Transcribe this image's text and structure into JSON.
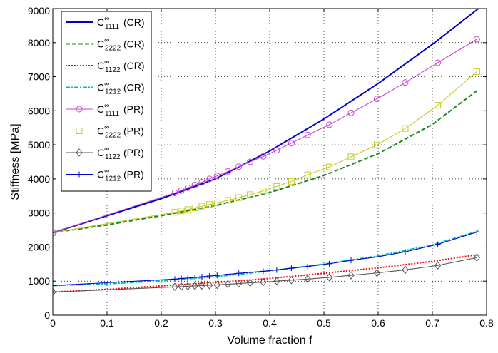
{
  "chart_data": {
    "type": "line",
    "title": "",
    "xlabel": "Volume fraction f",
    "ylabel": "Stiffness [MPa]",
    "xlim": [
      0,
      0.8
    ],
    "ylim": [
      0,
      9000
    ],
    "xticks": [
      "0",
      "0.1",
      "0.2",
      "0.3",
      "0.4",
      "0.5",
      "0.6",
      "0.7",
      "0.8"
    ],
    "yticks": [
      "0",
      "1000",
      "2000",
      "3000",
      "4000",
      "5000",
      "6000",
      "7000",
      "8000",
      "9000"
    ],
    "grid": true,
    "legend_position": "top-left",
    "series": [
      {
        "name": "C",
        "sup": "∞",
        "sub": "1111",
        "suffix": "(CR)",
        "color": "#0000cc",
        "dash": "",
        "marker": "none",
        "x": [
          0,
          0.1,
          0.2,
          0.3,
          0.4,
          0.5,
          0.6,
          0.7,
          0.785
        ],
        "y": [
          2420,
          2920,
          3420,
          4000,
          4820,
          5760,
          6800,
          7950,
          9000
        ]
      },
      {
        "name": "C",
        "sup": "∞",
        "sub": "2222",
        "suffix": "(CR)",
        "color": "#1a8a1a",
        "dash": "6,3",
        "marker": "none",
        "x": [
          0,
          0.1,
          0.2,
          0.3,
          0.4,
          0.5,
          0.6,
          0.7,
          0.785
        ],
        "y": [
          2420,
          2650,
          2920,
          3220,
          3600,
          4100,
          4740,
          5600,
          6620
        ]
      },
      {
        "name": "C",
        "sup": "∞",
        "sub": "1122",
        "suffix": "(CR)",
        "color": "#ff0000",
        "dash": "2,2",
        "marker": "none",
        "x": [
          0,
          0.1,
          0.2,
          0.3,
          0.4,
          0.5,
          0.6,
          0.7,
          0.785
        ],
        "y": [
          680,
          760,
          860,
          960,
          1080,
          1230,
          1390,
          1580,
          1780
        ]
      },
      {
        "name": "C",
        "sup": "∞",
        "sub": "1212",
        "suffix": "(CR)",
        "color": "#00bbbb",
        "dash": "6,2,2,2",
        "marker": "none",
        "x": [
          0,
          0.1,
          0.2,
          0.3,
          0.4,
          0.5,
          0.6,
          0.7,
          0.785
        ],
        "y": [
          870,
          920,
          1010,
          1130,
          1300,
          1500,
          1740,
          2060,
          2470
        ]
      },
      {
        "name": "C",
        "sup": "∞",
        "sub": "1111",
        "suffix": "(PR)",
        "color": "#cc44cc",
        "dash": "",
        "marker": "circle",
        "x": [
          0,
          0.225,
          0.237,
          0.249,
          0.262,
          0.275,
          0.289,
          0.303,
          0.323,
          0.343,
          0.364,
          0.388,
          0.413,
          0.44,
          0.47,
          0.51,
          0.55,
          0.598,
          0.65,
          0.71,
          0.782
        ],
        "y": [
          2420,
          3590,
          3660,
          3740,
          3820,
          3900,
          4000,
          4090,
          4220,
          4360,
          4500,
          4660,
          4840,
          5050,
          5290,
          5590,
          5940,
          6350,
          6830,
          7410,
          8100
        ]
      },
      {
        "name": "C",
        "sup": "∞",
        "sub": "2222",
        "suffix": "(PR)",
        "color": "#c8c820",
        "dash": "",
        "marker": "square",
        "x": [
          0,
          0.225,
          0.237,
          0.249,
          0.262,
          0.275,
          0.289,
          0.303,
          0.323,
          0.343,
          0.364,
          0.388,
          0.413,
          0.44,
          0.47,
          0.51,
          0.55,
          0.598,
          0.65,
          0.71,
          0.782
        ],
        "y": [
          2420,
          3020,
          3060,
          3100,
          3150,
          3200,
          3250,
          3300,
          3370,
          3450,
          3540,
          3650,
          3780,
          3930,
          4120,
          4350,
          4650,
          5000,
          5480,
          6160,
          7150
        ]
      },
      {
        "name": "C",
        "sup": "∞",
        "sub": "1122",
        "suffix": "(PR)",
        "color": "#555555",
        "dash": "",
        "marker": "diamond",
        "x": [
          0,
          0.225,
          0.237,
          0.249,
          0.262,
          0.275,
          0.289,
          0.303,
          0.323,
          0.343,
          0.364,
          0.388,
          0.413,
          0.44,
          0.47,
          0.51,
          0.55,
          0.598,
          0.65,
          0.71,
          0.782
        ],
        "y": [
          680,
          830,
          840,
          850,
          860,
          870,
          880,
          890,
          910,
          930,
          950,
          970,
          1000,
          1030,
          1060,
          1110,
          1170,
          1240,
          1330,
          1460,
          1690
        ]
      },
      {
        "name": "C",
        "sup": "∞",
        "sub": "1212",
        "suffix": "(PR)",
        "color": "#0000cc",
        "dash": "",
        "marker": "plus",
        "x": [
          0,
          0.225,
          0.237,
          0.249,
          0.262,
          0.275,
          0.289,
          0.303,
          0.323,
          0.343,
          0.364,
          0.388,
          0.413,
          0.44,
          0.47,
          0.51,
          0.55,
          0.598,
          0.65,
          0.71,
          0.782
        ],
        "y": [
          870,
          1060,
          1080,
          1090,
          1110,
          1130,
          1150,
          1170,
          1200,
          1230,
          1260,
          1290,
          1330,
          1380,
          1430,
          1510,
          1610,
          1710,
          1860,
          2080,
          2440
        ]
      }
    ]
  }
}
